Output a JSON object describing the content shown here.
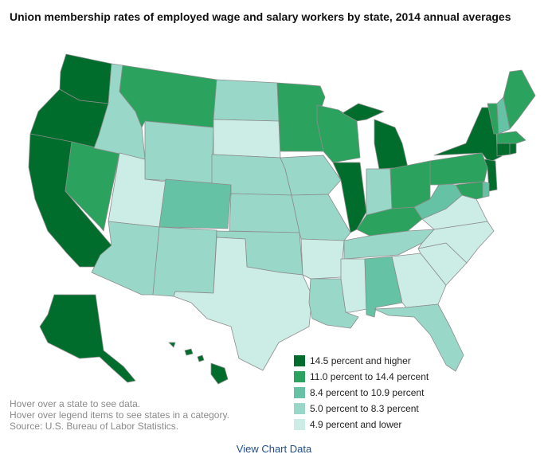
{
  "title": "Union membership rates of employed wage and salary workers by state, 2014 annual averages",
  "legend": [
    {
      "label": "14.5 percent and higher",
      "color": "#006d2c"
    },
    {
      "label": "11.0 percent to 14.4 percent",
      "color": "#2ca25f"
    },
    {
      "label": "8.4 percent to 10.9 percent",
      "color": "#66c2a4"
    },
    {
      "label": "5.0 percent to 8.3 percent",
      "color": "#99d8c9"
    },
    {
      "label": "4.9 percent and lower",
      "color": "#ccece6"
    }
  ],
  "notes": {
    "line1": "Hover over a state to see data.",
    "line2": "Hover over legend items to see states in a category.",
    "source": "Source: U.S. Bureau of Labor Statistics."
  },
  "view_chart_data": "View Chart Data",
  "states": {
    "WA": 0,
    "OR": 0,
    "CA": 0,
    "NY": 0,
    "NJ": 0,
    "CT": 0,
    "RI": 0,
    "MI": 0,
    "IL": 0,
    "AK": 0,
    "HI": 0,
    "NV": 1,
    "MT": 1,
    "MN": 1,
    "WI": 1,
    "OH": 1,
    "PA": 1,
    "KY": 1,
    "ME": 1,
    "VT": 1,
    "MA": 1,
    "MD": 1,
    "CO": 2,
    "AL": 2,
    "WV": 2,
    "NH": 2,
    "DE": 2,
    "ID": 3,
    "WY": 3,
    "ND": 3,
    "NE": 3,
    "KS": 3,
    "IA": 3,
    "MO": 3,
    "AZ": 3,
    "NM": 3,
    "OK": 3,
    "IN": 3,
    "LA": 3,
    "FL": 3,
    "TN": 3,
    "UT": 4,
    "SD": 4,
    "TX": 4,
    "AR": 4,
    "MS": 4,
    "GA": 4,
    "SC": 4,
    "NC": 4,
    "VA": 4
  }
}
